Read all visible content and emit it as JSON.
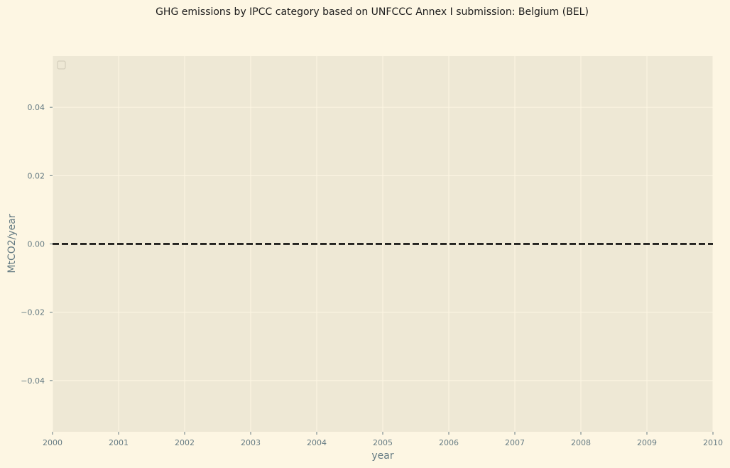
{
  "chart_data": {
    "type": "line",
    "title": "GHG emissions by IPCC category based on UNFCCC Annex I submission: Belgium (BEL)",
    "xlabel": "year",
    "ylabel": "MtCO2/year",
    "xlim": [
      2000,
      2010
    ],
    "ylim": [
      -0.055,
      0.055
    ],
    "x_ticks": [
      2000,
      2001,
      2002,
      2003,
      2004,
      2005,
      2006,
      2007,
      2008,
      2009,
      2010
    ],
    "x_tick_labels": [
      "2000",
      "2001",
      "2002",
      "2003",
      "2004",
      "2005",
      "2006",
      "2007",
      "2008",
      "2009",
      "2010"
    ],
    "y_ticks": [
      -0.04,
      -0.02,
      0.0,
      0.02,
      0.04
    ],
    "y_tick_labels": [
      "−0.04",
      "−0.02",
      "0.00",
      "0.02",
      "0.04"
    ],
    "grid": true,
    "legend": {
      "placement": "top-left",
      "entries": []
    },
    "series": [
      {
        "style": "dashed",
        "color": "#000000",
        "x": [
          2000,
          2010
        ],
        "y": [
          0,
          0
        ]
      }
    ]
  },
  "colors": {
    "page_background": "#fdf6e3",
    "plot_background": "#eee8d5",
    "grid": "#fdf6e3",
    "tick_text": "#657b83",
    "title_text": "#1c1c1c"
  }
}
